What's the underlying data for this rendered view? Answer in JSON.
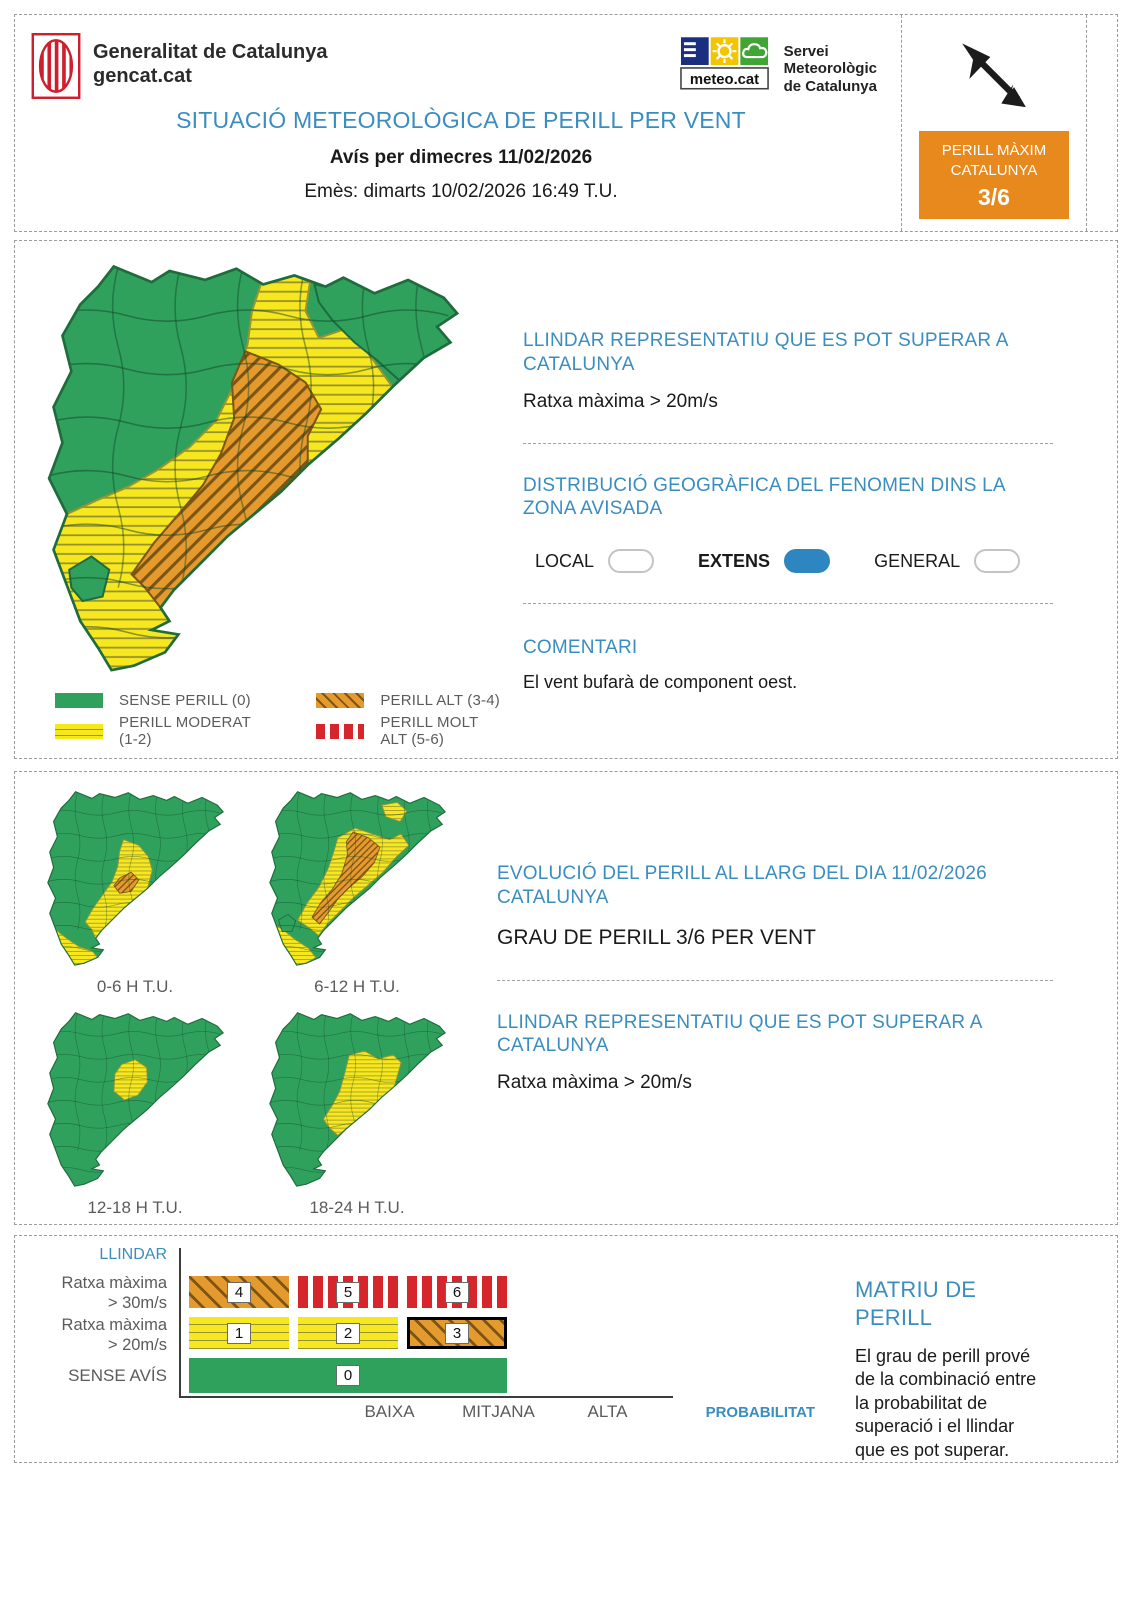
{
  "colors": {
    "heading_blue": "#3A8DBF",
    "toggle_blue": "#2E86C1",
    "badge_orange": "#E8891E",
    "map_green": "#2FA15D",
    "map_green_dark": "#1E6B3C",
    "map_yellow": "#F6E71E",
    "map_orange": "#E59A2E",
    "alert_red": "#D6252B",
    "text_gray": "#5B5B5B"
  },
  "header": {
    "brand_line1": "Generalitat de Catalunya",
    "brand_line2": "gencat.cat",
    "meteocat_label": "meteo.cat",
    "smc_line1": "Servei",
    "smc_line2": "Meteorològic",
    "smc_line3": "de Catalunya",
    "title": "SITUACIÓ METEOROLÒGICA DE PERILL PER VENT",
    "subtitle": "Avís per dimecres 11/02/2026",
    "issued": "Emès: dimarts 10/02/2026 16:49 T.U.",
    "badge": {
      "line1": "PERILL MÀXIM",
      "line2": "CATALUNYA",
      "value": "3/6"
    }
  },
  "warning": {
    "threshold_line1": "LLINDAR REPRESENTATIU QUE ES POT SUPERAR A",
    "threshold_line2": "CATALUNYA",
    "threshold_value": "Ratxa màxima > 20m/s",
    "distribution_line1": "DISTRIBUCIÓ GEOGRÀFICA DEL FENOMEN DINS LA",
    "distribution_line2": "ZONA AVISADA",
    "options": [
      {
        "label": "LOCAL",
        "selected": false
      },
      {
        "label": "EXTENS",
        "selected": true
      },
      {
        "label": "GENERAL",
        "selected": false
      }
    ],
    "comment_title": "COMENTARI",
    "comment_text": "El vent bufarà de component oest."
  },
  "legend": {
    "items": [
      {
        "label": "SENSE PERILL (0)",
        "style": "green"
      },
      {
        "label": "PERILL MODERAT (1-2)",
        "style": "yellow"
      },
      {
        "label": "PERILL ALT (3-4)",
        "style": "orange"
      },
      {
        "label": "PERILL MOLT ALT (5-6)",
        "style": "red"
      }
    ]
  },
  "evolution": {
    "title_line1": "EVOLUCIÓ DEL PERILL AL LLARG DEL DIA 11/02/2026",
    "title_line2": "CATALUNYA",
    "grade_text": "GRAU DE PERILL 3/6 PER VENT",
    "threshold_line1": "LLINDAR REPRESENTATIU QUE ES POT SUPERAR A",
    "threshold_line2": "CATALUNYA",
    "threshold_value": "Ratxa màxima > 20m/s",
    "timeframes": [
      "0-6 H T.U.",
      "6-12 H T.U.",
      "12-18 H T.U.",
      "18-24 H T.U."
    ]
  },
  "matrix": {
    "title": "MATRIU DE PERILL",
    "description": "El grau de perill prové de la combinació entre la probabilitat de superació i el llindar que es pot superar.",
    "y_axis_label": "LLINDAR",
    "x_axis_label": "PROBABILITAT",
    "rows": [
      {
        "label_line1": "Ratxa màxima",
        "label_line2": "> 30m/s",
        "cells": [
          "4",
          "5",
          "6"
        ]
      },
      {
        "label_line1": "Ratxa màxima",
        "label_line2": "> 20m/s",
        "cells": [
          "1",
          "2",
          "3"
        ]
      },
      {
        "label_line1": "SENSE AVÍS",
        "cells": [
          "0"
        ]
      }
    ],
    "col_labels": [
      "BAIXA",
      "MITJANA",
      "ALTA"
    ],
    "selected_cell": "3"
  }
}
